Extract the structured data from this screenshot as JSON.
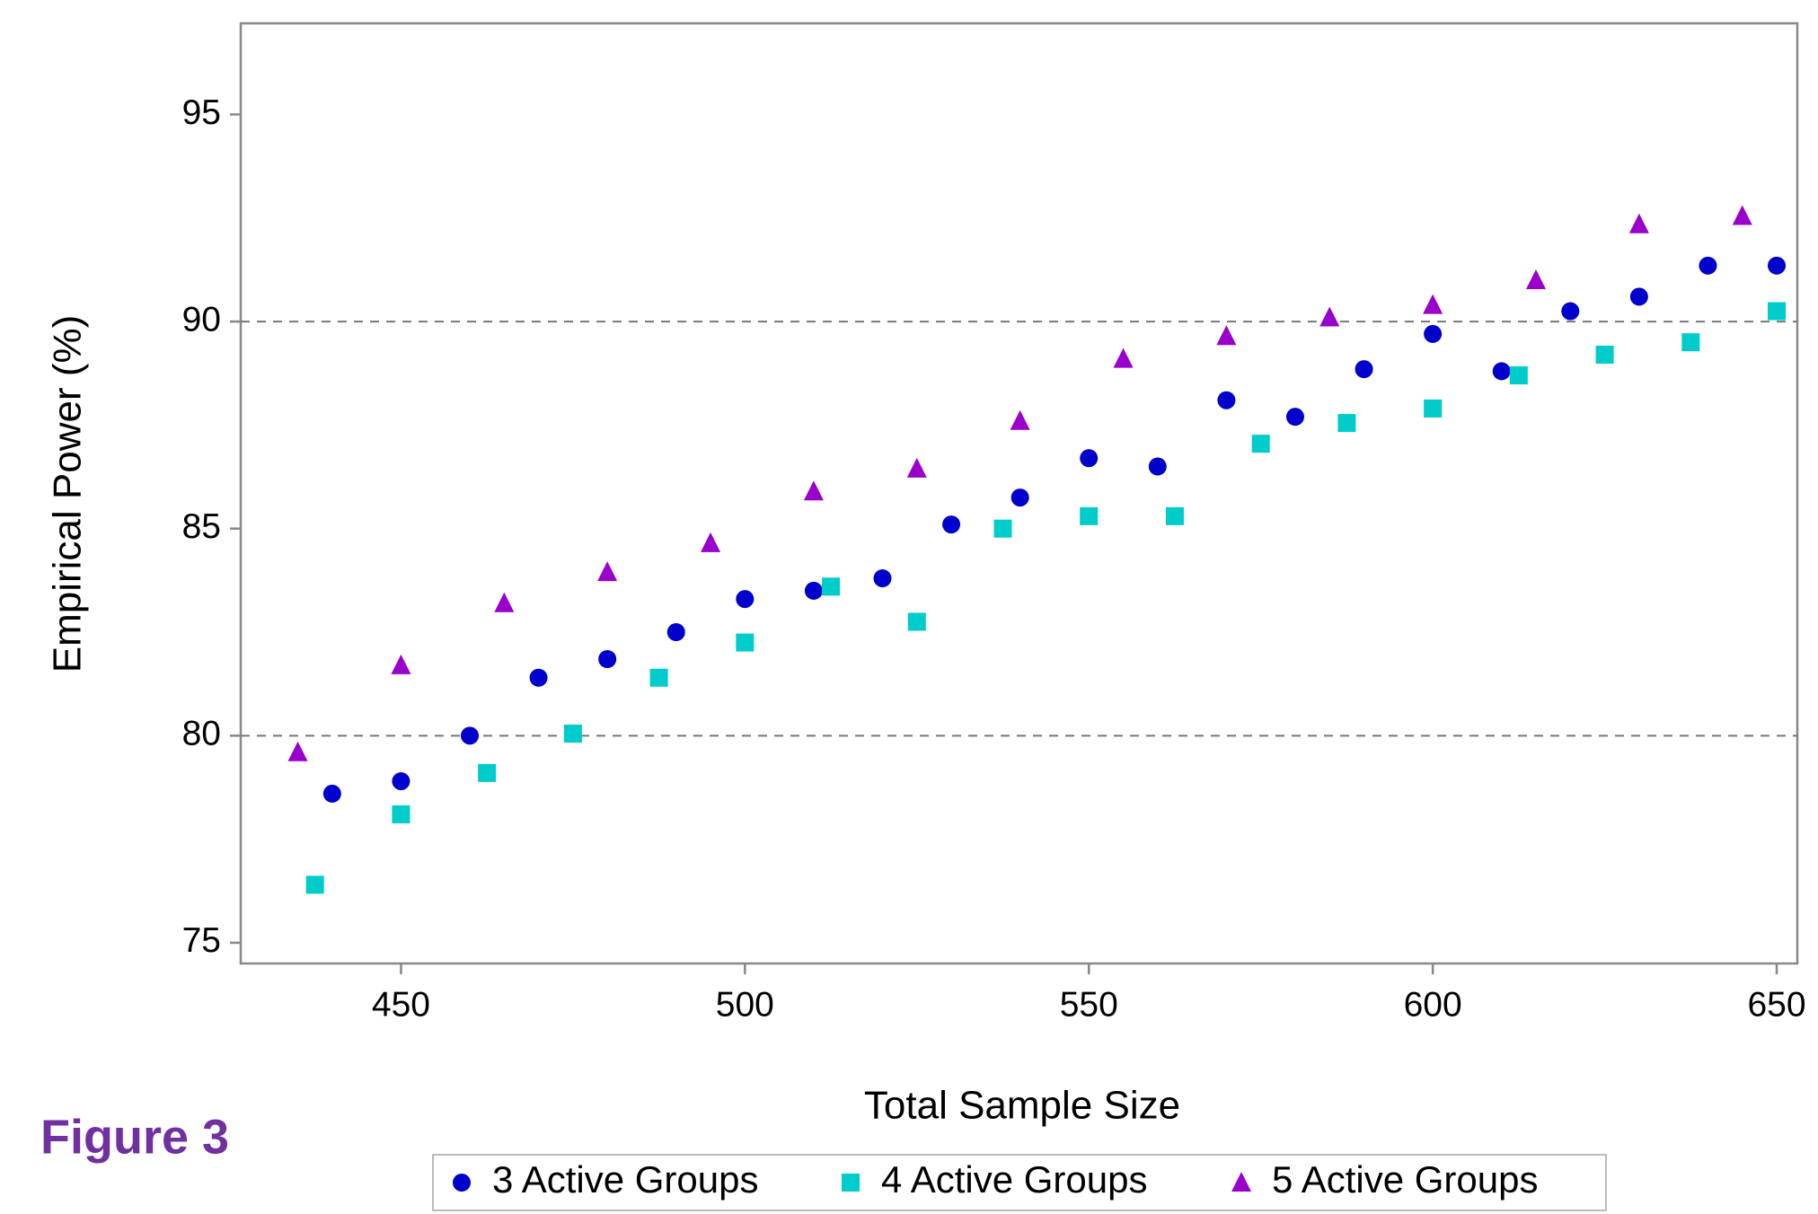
{
  "chart_data": {
    "type": "scatter",
    "figure_label": "Figure 3",
    "xlabel": "Total Sample Size",
    "ylabel": "Empirical Power (%)",
    "xlim": [
      426.7,
      653
    ],
    "ylim": [
      74.5,
      97.2
    ],
    "xticks": [
      450,
      500,
      550,
      600,
      650
    ],
    "yticks": [
      75,
      80,
      85,
      90,
      95
    ],
    "grid": false,
    "reference_lines": [
      80,
      90
    ],
    "legend": "bottom",
    "series": [
      {
        "name": "3 Active Groups",
        "color": "#0000cc",
        "marker": "circle",
        "x": [
          440,
          450,
          460,
          470,
          480,
          490,
          500,
          510,
          520,
          530,
          540,
          550,
          560,
          570,
          580,
          590,
          600,
          610,
          620,
          630,
          640,
          650
        ],
        "values": [
          78.6,
          78.9,
          80.0,
          81.4,
          81.85,
          82.5,
          83.3,
          83.5,
          83.8,
          85.1,
          85.75,
          86.7,
          86.5,
          88.1,
          87.7,
          88.85,
          89.7,
          88.8,
          90.25,
          90.6,
          91.35,
          91.35
        ]
      },
      {
        "name": "4 Active Groups",
        "color": "#00cccc",
        "marker": "square",
        "x": [
          437.5,
          450,
          462.5,
          475,
          487.5,
          500,
          512.5,
          525,
          537.5,
          550,
          562.5,
          575,
          587.5,
          600,
          612.5,
          625,
          637.5,
          650
        ],
        "values": [
          76.4,
          78.1,
          79.1,
          80.05,
          81.4,
          82.25,
          83.6,
          82.75,
          85.0,
          85.3,
          85.3,
          87.05,
          87.55,
          87.9,
          88.7,
          89.2,
          89.5,
          90.25
        ]
      },
      {
        "name": "5 Active Groups",
        "color": "#9900cc",
        "marker": "triangle",
        "x": [
          435,
          450,
          465,
          480,
          495,
          510,
          525,
          540,
          555,
          570,
          585,
          600,
          615,
          630,
          645
        ],
        "values": [
          79.6,
          81.7,
          83.2,
          83.95,
          84.65,
          85.9,
          86.45,
          87.6,
          89.1,
          89.65,
          90.1,
          90.4,
          91.0,
          92.35,
          92.55
        ]
      }
    ]
  }
}
